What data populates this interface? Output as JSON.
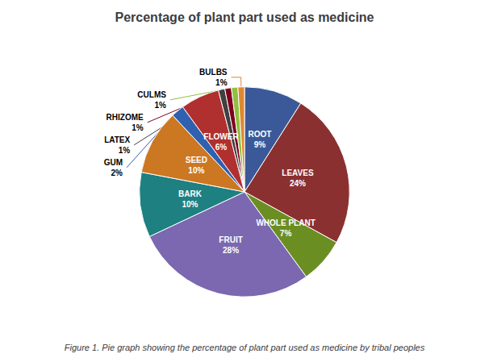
{
  "chart_data": {
    "type": "pie",
    "title": "Percentage of plant part used as medicine",
    "caption": "Figure 1. Pie graph showing the percentage of plant part used as medicine by tribal peoples",
    "categories": [
      "ROOT",
      "LEAVES",
      "WHOLE PLANT",
      "FRUIT",
      "BARK",
      "SEED",
      "GUM",
      "FLOWER",
      "LATEX",
      "RHIZOME",
      "CULMS",
      "BULBS"
    ],
    "values": [
      9,
      24,
      7,
      28,
      10,
      10,
      2,
      6,
      1,
      1,
      1,
      1
    ],
    "value_labels": [
      "9%",
      "24%",
      "7%",
      "28%",
      "10%",
      "10%",
      "2%",
      "6%",
      "1%",
      "1%",
      "1%",
      "1%"
    ],
    "colors": [
      "#3B5998",
      "#8B3030",
      "#6B8E23",
      "#7B68B0",
      "#1E8080",
      "#CC7722",
      "#3060B0",
      "#B03030",
      "#404040",
      "#800020",
      "#90C040",
      "#E08830"
    ],
    "data_labels": true
  }
}
